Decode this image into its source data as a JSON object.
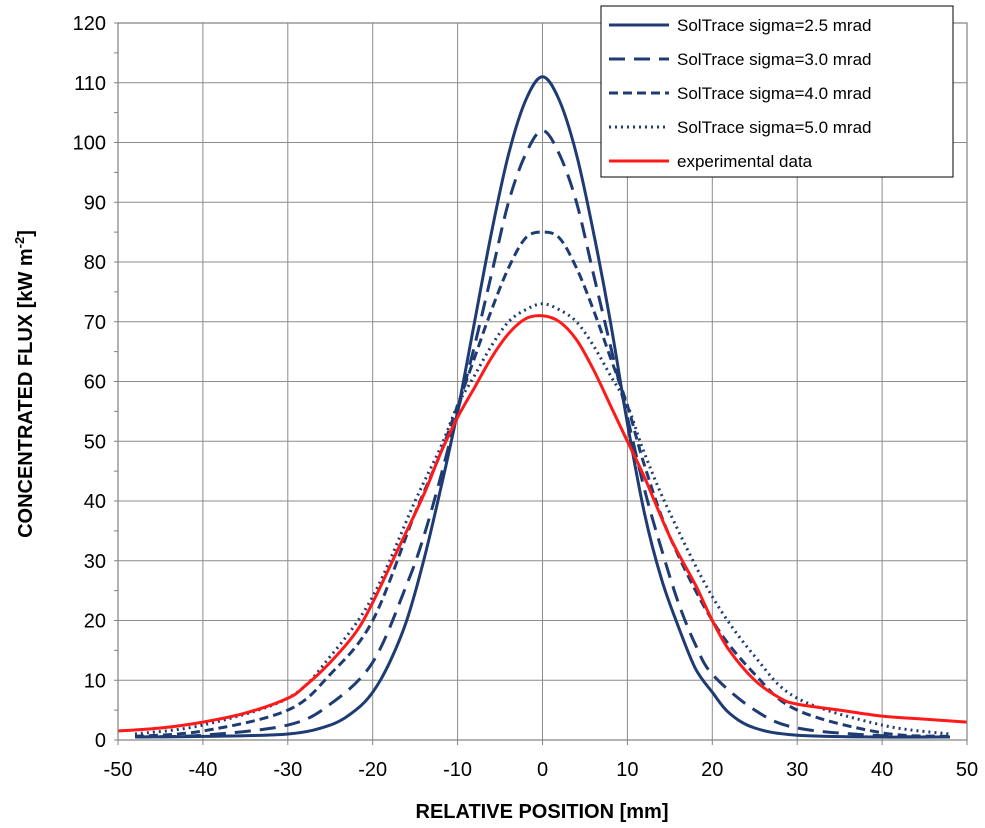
{
  "chart_data": {
    "type": "line",
    "title": "",
    "xlabel": "RELATIVE POSITION [mm]",
    "ylabel": "CONCENTRATED FLUX [kW m⁻²]",
    "ylabel_main": "CONCENTRATED FLUX [kW m",
    "ylabel_sup": "-2",
    "ylabel_end": "]",
    "xlim": [
      -50,
      50
    ],
    "ylim": [
      0,
      120
    ],
    "xticks": [
      -50,
      -40,
      -30,
      -20,
      -10,
      0,
      10,
      20,
      30,
      40,
      50
    ],
    "yticks": [
      0,
      10,
      20,
      30,
      40,
      50,
      60,
      70,
      80,
      90,
      100,
      110,
      120
    ],
    "grid": true,
    "legend_position": "top-right",
    "series": [
      {
        "name": "SolTrace sigma=2.5 mrad",
        "color": "#1f3b73",
        "style": "solid",
        "x": [
          -48,
          -40,
          -30,
          -25,
          -22,
          -20,
          -18,
          -16,
          -14,
          -12,
          -10,
          -8,
          -6,
          -4,
          -2,
          0,
          2,
          4,
          6,
          8,
          10,
          12,
          14,
          16,
          18,
          20,
          22,
          25,
          30,
          40,
          48
        ],
        "y": [
          0.5,
          0.6,
          1,
          2.5,
          5,
          8,
          13,
          20,
          30,
          42,
          55,
          70,
          85,
          98,
          107,
          111,
          107,
          98,
          85,
          70,
          53,
          38,
          27,
          19,
          12,
          8,
          4.5,
          2,
          0.8,
          0.5,
          0.5
        ]
      },
      {
        "name": "SolTrace sigma=3.0 mrad",
        "color": "#1f3b73",
        "style": "dash-long",
        "x": [
          -48,
          -40,
          -30,
          -25,
          -20,
          -16,
          -14,
          -12,
          -10,
          -8,
          -6,
          -4,
          -2,
          0,
          2,
          4,
          6,
          8,
          10,
          12,
          14,
          16,
          18,
          20,
          25,
          30,
          40,
          48
        ],
        "y": [
          0.5,
          0.8,
          2.5,
          6,
          13,
          26,
          34,
          44,
          55,
          66,
          78,
          90,
          98,
          102,
          98,
          90,
          78,
          66,
          54,
          42,
          32,
          23,
          16,
          11,
          5,
          2,
          0.7,
          0.5
        ]
      },
      {
        "name": "SolTrace sigma=4.0 mrad",
        "color": "#1f3b73",
        "style": "dash-short",
        "x": [
          -48,
          -40,
          -30,
          -25,
          -20,
          -15,
          -12,
          -10,
          -8,
          -6,
          -4,
          -2,
          0,
          2,
          4,
          6,
          8,
          10,
          12,
          15,
          20,
          25,
          30,
          40,
          48
        ],
        "y": [
          0.6,
          1.5,
          5,
          11,
          20,
          38,
          48,
          56,
          64,
          72,
          79,
          84,
          85,
          84,
          79,
          72,
          64,
          56,
          46,
          34,
          20,
          11,
          5,
          1.2,
          0.6
        ]
      },
      {
        "name": "SolTrace sigma=5.0 mrad",
        "color": "#1f3b73",
        "style": "dotted",
        "x": [
          -48,
          -40,
          -30,
          -25,
          -20,
          -15,
          -12,
          -10,
          -8,
          -6,
          -4,
          -2,
          0,
          2,
          4,
          6,
          8,
          10,
          12,
          15,
          20,
          25,
          30,
          40,
          48
        ],
        "y": [
          1,
          2.5,
          7,
          14,
          24,
          40,
          49,
          56,
          61,
          66,
          70,
          72,
          73,
          72,
          70,
          66,
          61,
          56,
          48,
          38,
          24,
          14,
          7,
          2.5,
          1
        ]
      },
      {
        "name": "experimental data",
        "color": "#ff1a1a",
        "style": "solid",
        "x": [
          -50,
          -45,
          -40,
          -35,
          -30,
          -28,
          -25,
          -22,
          -20,
          -17,
          -14,
          -12,
          -10,
          -8,
          -6,
          -4,
          -2,
          0,
          2,
          4,
          6,
          8,
          10,
          12,
          15,
          18,
          20,
          22,
          25,
          28,
          30,
          35,
          40,
          45,
          50
        ],
        "y": [
          1.5,
          2,
          3,
          4.5,
          7,
          9,
          13,
          18,
          23,
          32,
          41,
          48,
          54,
          59,
          64,
          68,
          70.5,
          71,
          70,
          67,
          62,
          56,
          50,
          44,
          34,
          26,
          20,
          15,
          10,
          7,
          6,
          5,
          4,
          3.5,
          3
        ]
      }
    ]
  }
}
